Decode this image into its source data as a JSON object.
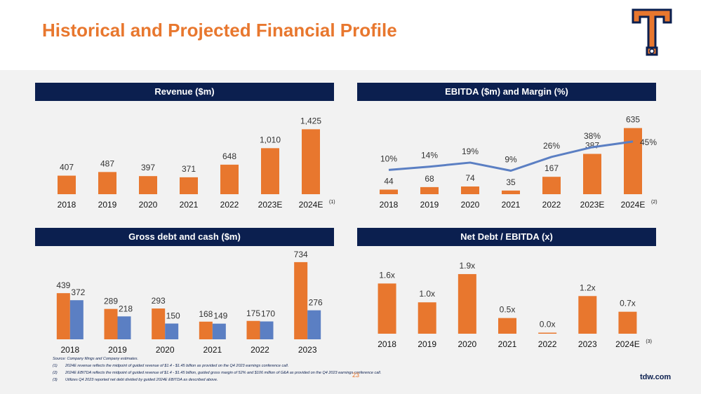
{
  "page": {
    "title": "Historical and Projected Financial Profile",
    "page_number": "23",
    "site": "tdw.com"
  },
  "colors": {
    "orange": "#e8772e",
    "blue": "#5b7fc3",
    "navy": "#0b1f4f",
    "line": "#5b7fc3"
  },
  "chart_data": [
    {
      "type": "bar",
      "title": "Revenue ($m)",
      "categories": [
        "2018",
        "2019",
        "2020",
        "2021",
        "2022",
        "2023E",
        "2024E"
      ],
      "footnote_marker": "(1)",
      "series": [
        {
          "name": "Revenue",
          "values": [
            407,
            487,
            397,
            371,
            648,
            1010,
            1425
          ],
          "labels": [
            "407",
            "487",
            "397",
            "371",
            "648",
            "1,010",
            "1,425"
          ]
        }
      ],
      "ylim": [
        0,
        1600
      ]
    },
    {
      "type": "bar+line",
      "title": "EBITDA ($m) and Margin (%)",
      "categories": [
        "2018",
        "2019",
        "2020",
        "2021",
        "2022",
        "2023E",
        "2024E"
      ],
      "footnote_marker": "(2)",
      "series": [
        {
          "name": "EBITDA",
          "values": [
            44,
            68,
            74,
            35,
            167,
            387,
            635
          ],
          "labels": [
            "44",
            "68",
            "74",
            "35",
            "167",
            "387",
            "635"
          ]
        },
        {
          "name": "Margin",
          "values": [
            10,
            14,
            19,
            9,
            26,
            38,
            45
          ],
          "labels": [
            "10%",
            "14%",
            "19%",
            "9%",
            "26%",
            "38%",
            "45%"
          ]
        }
      ],
      "ylim": [
        0,
        700
      ],
      "y2lim": [
        -20,
        70
      ]
    },
    {
      "type": "bar",
      "title": "Gross debt and cash ($m)",
      "categories": [
        "2018",
        "2019",
        "2020",
        "2021",
        "2022",
        "2023"
      ],
      "series": [
        {
          "name": "Gross debt",
          "values": [
            439,
            289,
            293,
            168,
            175,
            734
          ],
          "labels": [
            "439",
            "289",
            "293",
            "168",
            "175",
            "734"
          ]
        },
        {
          "name": "Cash",
          "values": [
            372,
            218,
            150,
            149,
            170,
            276
          ],
          "labels": [
            "372",
            "218",
            "150",
            "149",
            "170",
            "276"
          ]
        }
      ],
      "ylim": [
        0,
        800
      ]
    },
    {
      "type": "bar",
      "title": "Net Debt / EBITDA (x)",
      "categories": [
        "2018",
        "2019",
        "2020",
        "2021",
        "2022",
        "2023",
        "2024E"
      ],
      "footnote_marker": "(3)",
      "series": [
        {
          "name": "Net Debt / EBITDA",
          "values": [
            1.6,
            1.0,
            1.9,
            0.5,
            0.0,
            1.2,
            0.7
          ],
          "labels": [
            "1.6x",
            "1.0x",
            "1.9x",
            "0.5x",
            "0.0x",
            "1.2x",
            "0.7x"
          ]
        }
      ],
      "ylim": [
        0,
        2.1
      ]
    }
  ],
  "notes": {
    "source": "Source: Company filings and Company estimates.",
    "items": [
      {
        "num": "(1)",
        "text": "2024E revenue reflects the midpoint of guided revenue of $1.4 - $1.45 billion as provided on the Q4 2023 earnings conference call."
      },
      {
        "num": "(2)",
        "text": "2024E EBITDA reflects the midpoint of guided revenue of $1.4 - $1.45 billion, guided gross margin of 52% and $106 million of G&A as provided on the Q4 2023 earnings conference call."
      },
      {
        "num": "(3)",
        "text": "Utilizes Q4 2023 reported net debt divided by guided 2024E EBITDA as described above."
      }
    ]
  }
}
